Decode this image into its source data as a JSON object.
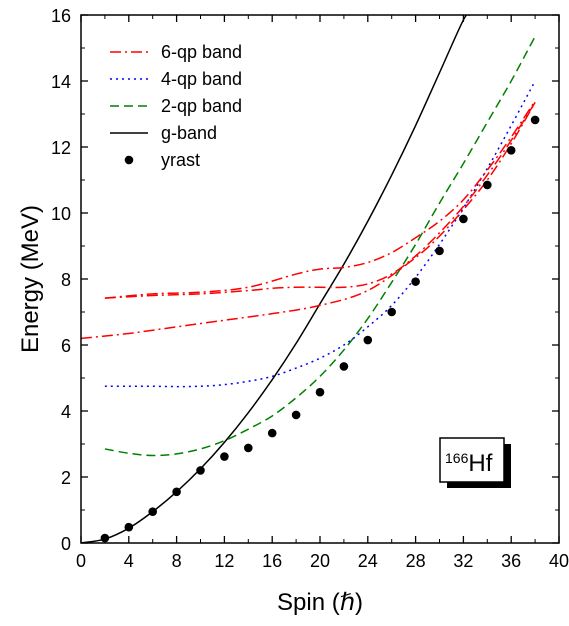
{
  "chart_data": {
    "type": "line",
    "xlabel": "Spin (ℏ)",
    "ylabel": "Energy (MeV)",
    "xlim": [
      0,
      40
    ],
    "ylim": [
      0,
      16
    ],
    "xticks": [
      0,
      4,
      8,
      12,
      16,
      20,
      24,
      28,
      32,
      36,
      40
    ],
    "yticks": [
      0,
      2,
      4,
      6,
      8,
      10,
      12,
      14,
      16
    ],
    "grid": false,
    "legend_position": "top-left",
    "annotation": {
      "mass_number": "166",
      "element": "Hf"
    },
    "legend": [
      {
        "label": "6-qp band",
        "series": "6-qp band",
        "color": "#ff0000",
        "style": "dashdot"
      },
      {
        "label": "4-qp band",
        "series": "4-qp band",
        "color": "#0000ff",
        "style": "dotted"
      },
      {
        "label": "2-qp band",
        "series": "2-qp band",
        "color": "#008000",
        "style": "dashed"
      },
      {
        "label": "g-band",
        "series": "g-band",
        "color": "#000000",
        "style": "solid"
      },
      {
        "label": "yrast",
        "series": "yrast",
        "color": "#000000",
        "style": "marker"
      }
    ],
    "series": [
      {
        "name": "g-band",
        "style": "solid",
        "color": "#000000",
        "x": [
          0,
          2,
          4,
          6,
          8,
          10,
          12,
          14,
          16,
          18,
          20,
          22,
          24,
          26,
          28,
          30,
          32,
          32.5
        ],
        "y": [
          0,
          0.12,
          0.45,
          0.95,
          1.55,
          2.25,
          3.05,
          3.95,
          4.95,
          6.05,
          7.25,
          8.45,
          9.75,
          11.15,
          12.65,
          14.25,
          15.85,
          16.0
        ]
      },
      {
        "name": "2-qp band",
        "style": "dashed",
        "color": "#008000",
        "x": [
          2,
          4,
          6,
          8,
          10,
          12,
          14,
          16,
          18,
          20,
          22,
          24,
          26,
          28,
          30,
          32,
          34,
          36,
          38
        ],
        "y": [
          2.85,
          2.72,
          2.65,
          2.7,
          2.85,
          3.1,
          3.45,
          3.85,
          4.4,
          5.05,
          5.85,
          6.8,
          7.9,
          9.05,
          10.3,
          11.5,
          12.75,
          14.0,
          15.35
        ]
      },
      {
        "name": "4-qp band",
        "style": "dotted",
        "color": "#0000ff",
        "x": [
          2,
          4,
          6,
          8,
          10,
          12,
          14,
          16,
          18,
          20,
          22,
          24,
          26,
          28,
          30,
          32,
          34,
          36,
          38
        ],
        "y": [
          4.75,
          4.75,
          4.75,
          4.74,
          4.75,
          4.8,
          4.9,
          5.05,
          5.3,
          5.6,
          6.0,
          6.55,
          7.2,
          8.05,
          9.05,
          10.15,
          11.35,
          12.65,
          14.0
        ]
      },
      {
        "name": "6-qp band",
        "style": "dashdot",
        "color": "#ff0000",
        "x": [
          0,
          4,
          8,
          12,
          16,
          20,
          24,
          28,
          30,
          32,
          34,
          36,
          38
        ],
        "y": [
          6.2,
          6.35,
          6.55,
          6.75,
          6.95,
          7.2,
          7.65,
          8.65,
          9.3,
          10.1,
          11.0,
          12.1,
          13.35
        ]
      },
      {
        "name": "6-qp band",
        "style": "dashdot",
        "color": "#ff0000",
        "x": [
          2,
          6,
          10,
          14,
          18,
          20,
          22,
          24,
          26,
          28,
          30,
          32,
          34,
          36,
          38
        ],
        "y": [
          7.42,
          7.55,
          7.6,
          7.75,
          8.15,
          8.3,
          8.35,
          8.5,
          8.8,
          9.25,
          9.75,
          10.4,
          11.3,
          12.3,
          13.4
        ]
      },
      {
        "name": "6-qp band",
        "style": "dashdot",
        "color": "#ff0000",
        "x": [
          2,
          6,
          10,
          14,
          16,
          18,
          20,
          22,
          24,
          26,
          28,
          30,
          32,
          34,
          36,
          38
        ],
        "y": [
          7.42,
          7.5,
          7.55,
          7.65,
          7.72,
          7.75,
          7.75,
          7.75,
          7.85,
          8.15,
          8.7,
          9.4,
          10.2,
          11.15,
          12.2,
          13.35
        ]
      },
      {
        "name": "yrast",
        "style": "marker",
        "color": "#000000",
        "x": [
          2,
          4,
          6,
          8,
          10,
          12,
          14,
          16,
          18,
          20,
          22,
          24,
          26,
          28,
          30,
          32,
          34,
          36,
          38
        ],
        "y": [
          0.15,
          0.48,
          0.95,
          1.55,
          2.2,
          2.62,
          2.88,
          3.33,
          3.88,
          4.57,
          5.35,
          6.15,
          7.0,
          7.92,
          8.85,
          9.82,
          10.85,
          11.9,
          12.82
        ]
      }
    ]
  }
}
